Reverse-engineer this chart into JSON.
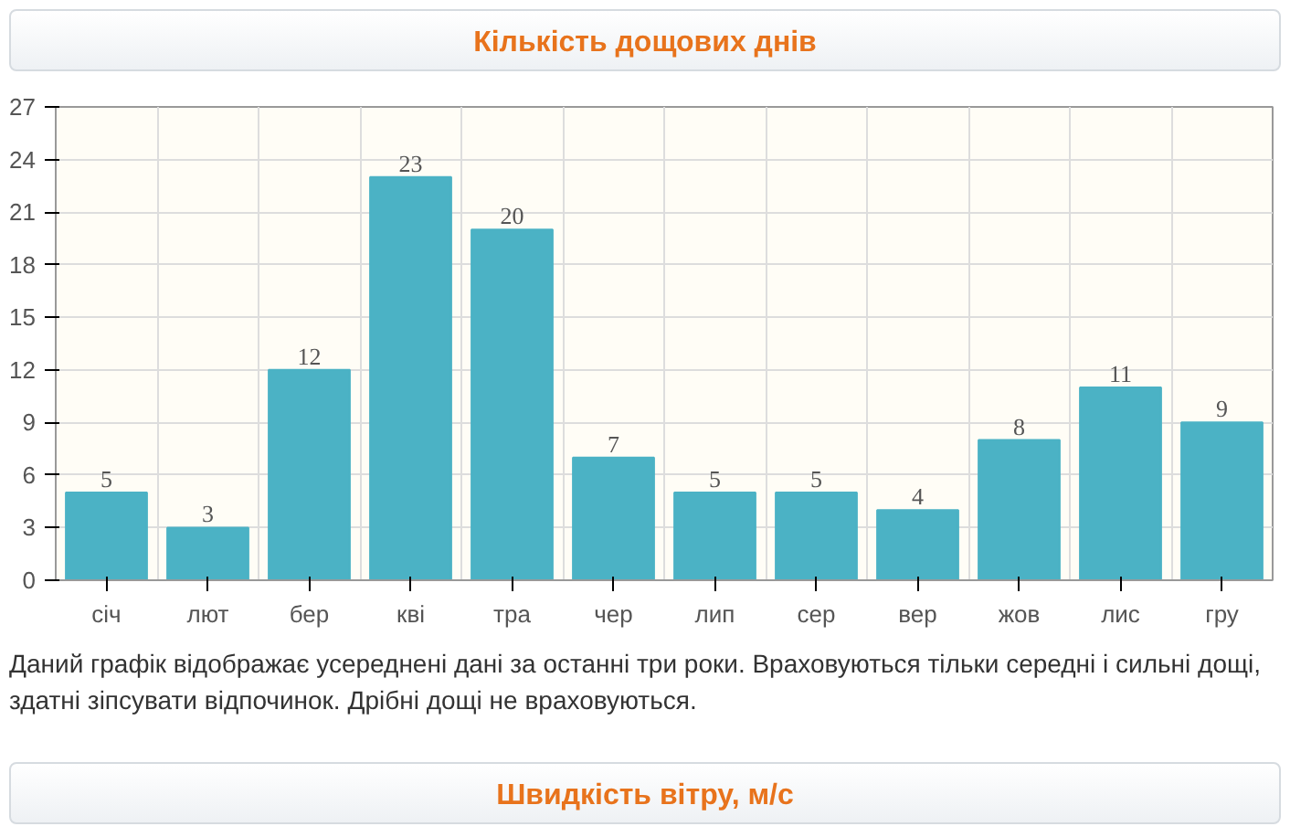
{
  "chart_data": {
    "type": "bar",
    "title": "Кількість дощових днів",
    "categories": [
      "січ",
      "лют",
      "бер",
      "кві",
      "тра",
      "чер",
      "лип",
      "сер",
      "вер",
      "жов",
      "лис",
      "гру"
    ],
    "values": [
      5,
      3,
      12,
      23,
      20,
      7,
      5,
      5,
      4,
      8,
      11,
      9
    ],
    "color": "#4bb2c5",
    "ylim": [
      0,
      27
    ],
    "yticks": [
      0,
      3,
      6,
      9,
      12,
      15,
      18,
      21,
      24,
      27
    ],
    "grid": true,
    "data_labels": true,
    "annotations": [
      "Даний графік відображає усереднені дані за останні три роки. Враховуються тільки середні і сильні дощі, здатні зіпсувати відпочинок. Дрібні дощі не враховуються.",
      "Швидкість вітру, м/с"
    ]
  }
}
